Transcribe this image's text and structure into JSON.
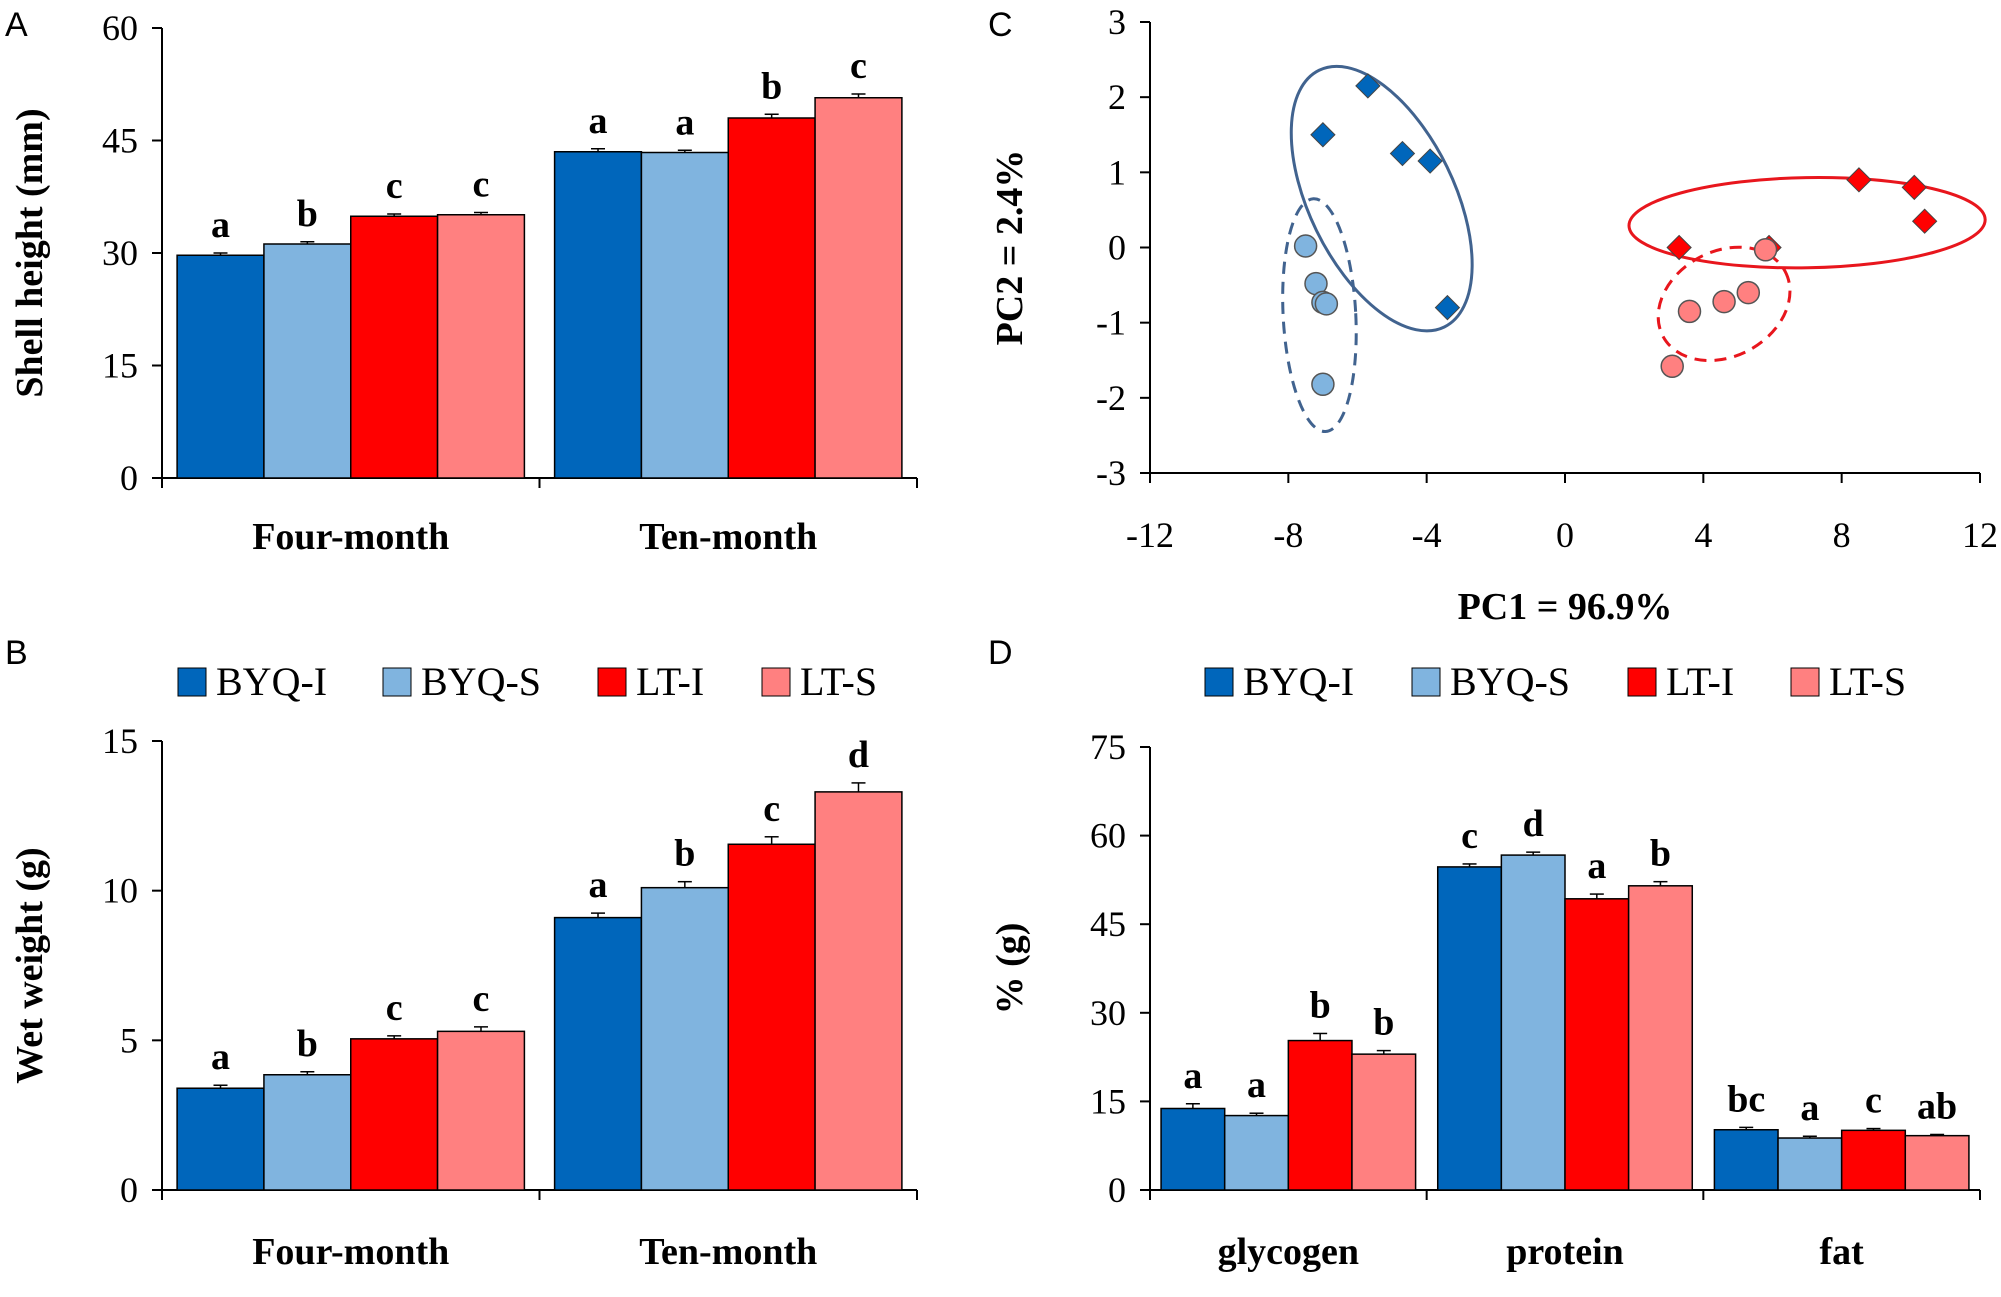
{
  "colors": {
    "BYQ-I": "#0066bb",
    "BYQ-S": "#80b4df",
    "LT-I": "#ff0000",
    "LT-S": "#ff8080",
    "blue_group": "#41638f",
    "red_group": "#e8161d"
  },
  "chart_data": [
    {
      "id": "A",
      "panel_label": "A",
      "type": "bar",
      "ylabel": "Shell height (mm)",
      "ylim": [
        0,
        60
      ],
      "yticks": [
        "0",
        "15",
        "30",
        "45",
        "60"
      ],
      "categories": [
        "Four-month",
        "Ten-month"
      ],
      "series": [
        {
          "name": "BYQ-I",
          "values": [
            29.7,
            43.5
          ],
          "errors": [
            0.3,
            0.4
          ],
          "letters": [
            "a",
            "a"
          ]
        },
        {
          "name": "BYQ-S",
          "values": [
            31.2,
            43.4
          ],
          "errors": [
            0.3,
            0.3
          ],
          "letters": [
            "b",
            "a"
          ]
        },
        {
          "name": "LT-I",
          "values": [
            34.9,
            48.0
          ],
          "errors": [
            0.3,
            0.5
          ],
          "letters": [
            "c",
            "b"
          ]
        },
        {
          "name": "LT-S",
          "values": [
            35.1,
            50.7
          ],
          "errors": [
            0.3,
            0.5
          ],
          "letters": [
            "c",
            "c"
          ]
        }
      ]
    },
    {
      "id": "B",
      "panel_label": "B",
      "type": "bar",
      "ylabel": "Wet weight (g)",
      "ylim": [
        0,
        15
      ],
      "yticks": [
        "0",
        "5",
        "10",
        "15"
      ],
      "categories": [
        "Four-month",
        "Ten-month"
      ],
      "legend": [
        "BYQ-I",
        "BYQ-S",
        "LT-I",
        "LT-S"
      ],
      "series": [
        {
          "name": "BYQ-I",
          "values": [
            3.4,
            9.1
          ],
          "errors": [
            0.1,
            0.15
          ],
          "letters": [
            "a",
            "a"
          ]
        },
        {
          "name": "BYQ-S",
          "values": [
            3.85,
            10.1
          ],
          "errors": [
            0.1,
            0.2
          ],
          "letters": [
            "b",
            "b"
          ]
        },
        {
          "name": "LT-I",
          "values": [
            5.05,
            11.55
          ],
          "errors": [
            0.1,
            0.25
          ],
          "letters": [
            "c",
            "c"
          ]
        },
        {
          "name": "LT-S",
          "values": [
            5.3,
            13.3
          ],
          "errors": [
            0.15,
            0.3
          ],
          "letters": [
            "c",
            "d"
          ]
        }
      ]
    },
    {
      "id": "C",
      "panel_label": "C",
      "type": "scatter",
      "xlabel": "PC1 = 96.9%",
      "ylabel": "PC2 = 2.4%",
      "xlim": [
        -12,
        12
      ],
      "ylim": [
        -3,
        3
      ],
      "xticks": [
        "-12",
        "-8",
        "-4",
        "0",
        "4",
        "8",
        "12"
      ],
      "yticks": [
        "-3",
        "-2",
        "-1",
        "0",
        "1",
        "2",
        "3"
      ],
      "series": [
        {
          "name": "BYQ-I",
          "marker": "diamond",
          "points": [
            [
              -7.0,
              1.5
            ],
            [
              -5.7,
              2.15
            ],
            [
              -4.7,
              1.25
            ],
            [
              -3.9,
              1.15
            ],
            [
              -3.4,
              -0.8
            ]
          ]
        },
        {
          "name": "BYQ-S",
          "marker": "circle",
          "points": [
            [
              -7.5,
              0.02
            ],
            [
              -7.2,
              -0.48
            ],
            [
              -7.0,
              -0.73
            ],
            [
              -6.9,
              -0.75
            ],
            [
              -7.0,
              -1.82
            ]
          ]
        },
        {
          "name": "LT-I",
          "marker": "diamond",
          "points": [
            [
              3.3,
              0.0
            ],
            [
              5.9,
              0.0
            ],
            [
              8.5,
              0.9
            ],
            [
              10.1,
              0.8
            ],
            [
              10.4,
              0.35
            ]
          ]
        },
        {
          "name": "LT-S",
          "marker": "circle",
          "points": [
            [
              3.1,
              -1.58
            ],
            [
              3.6,
              -0.85
            ],
            [
              4.6,
              -0.72
            ],
            [
              5.3,
              -0.6
            ],
            [
              5.8,
              -0.03
            ]
          ]
        }
      ],
      "groups": [
        {
          "name": "BYQ-I",
          "style": "solid",
          "cx": -5.3,
          "cy": 0.65,
          "rx": 2.1,
          "ry": 1.9,
          "rotate_deg": -26
        },
        {
          "name": "BYQ-S",
          "style": "dashed",
          "cx": -7.1,
          "cy": -0.9,
          "rx": 1.05,
          "ry": 1.55,
          "rotate_deg": -3
        },
        {
          "name": "LT-I",
          "style": "solid",
          "cx": 7.0,
          "cy": 0.33,
          "rx": 5.15,
          "ry": 0.6,
          "rotate_deg": -1
        },
        {
          "name": "LT-S",
          "style": "dashed",
          "cx": 4.6,
          "cy": -0.75,
          "rx": 2.0,
          "ry": 0.7,
          "rotate_deg": -28
        }
      ]
    },
    {
      "id": "D",
      "panel_label": "D",
      "type": "bar",
      "ylabel": "% (g)",
      "ylim": [
        0,
        75
      ],
      "yticks": [
        "0",
        "15",
        "30",
        "45",
        "60",
        "75"
      ],
      "categories": [
        "glycogen",
        "protein",
        "fat"
      ],
      "legend": [
        "BYQ-I",
        "BYQ-S",
        "LT-I",
        "LT-S"
      ],
      "series": [
        {
          "name": "BYQ-I",
          "values": [
            13.8,
            54.7,
            10.2
          ],
          "errors": [
            0.8,
            0.5,
            0.4
          ],
          "letters": [
            "a",
            "c",
            "bc"
          ]
        },
        {
          "name": "BYQ-S",
          "values": [
            12.6,
            56.7,
            8.8
          ],
          "errors": [
            0.4,
            0.5,
            0.3
          ],
          "letters": [
            "a",
            "d",
            "a"
          ]
        },
        {
          "name": "LT-I",
          "values": [
            25.3,
            49.3,
            10.1
          ],
          "errors": [
            1.2,
            0.8,
            0.3
          ],
          "letters": [
            "b",
            "a",
            "c"
          ]
        },
        {
          "name": "LT-S",
          "values": [
            23.0,
            51.5,
            9.2
          ],
          "errors": [
            0.6,
            0.7,
            0.2
          ],
          "letters": [
            "b",
            "b",
            "ab"
          ]
        }
      ]
    }
  ]
}
